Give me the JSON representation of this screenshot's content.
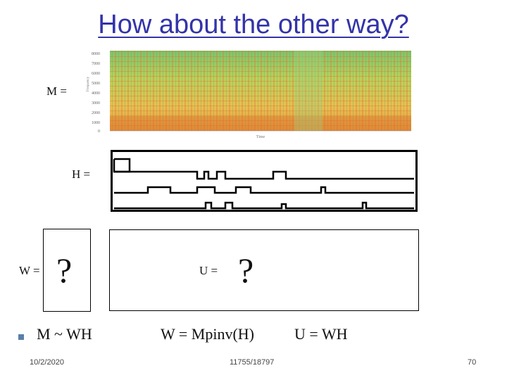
{
  "slide": {
    "title": "How about the other way?",
    "m_label": "M =",
    "h_label": "H =",
    "w_label": "W =",
    "w_unknown": "?",
    "u_label": "U =",
    "u_unknown": "?"
  },
  "bullet": {
    "formula_1": "M ~ WH",
    "formula_2": "W = Mpinv(H)",
    "formula_3": "U = WH"
  },
  "footer": {
    "date": "10/2/2020",
    "course": "11755/18797",
    "page": "70"
  },
  "spectrogram": {
    "y_ticks": [
      "8000",
      "7000",
      "6000",
      "5000",
      "4000",
      "3000",
      "2000",
      "1000",
      "0"
    ],
    "y_label": "Frequency",
    "x_label": "Time"
  },
  "colors": {
    "title": "#3333aa",
    "bullet": "#5a7fa8"
  }
}
